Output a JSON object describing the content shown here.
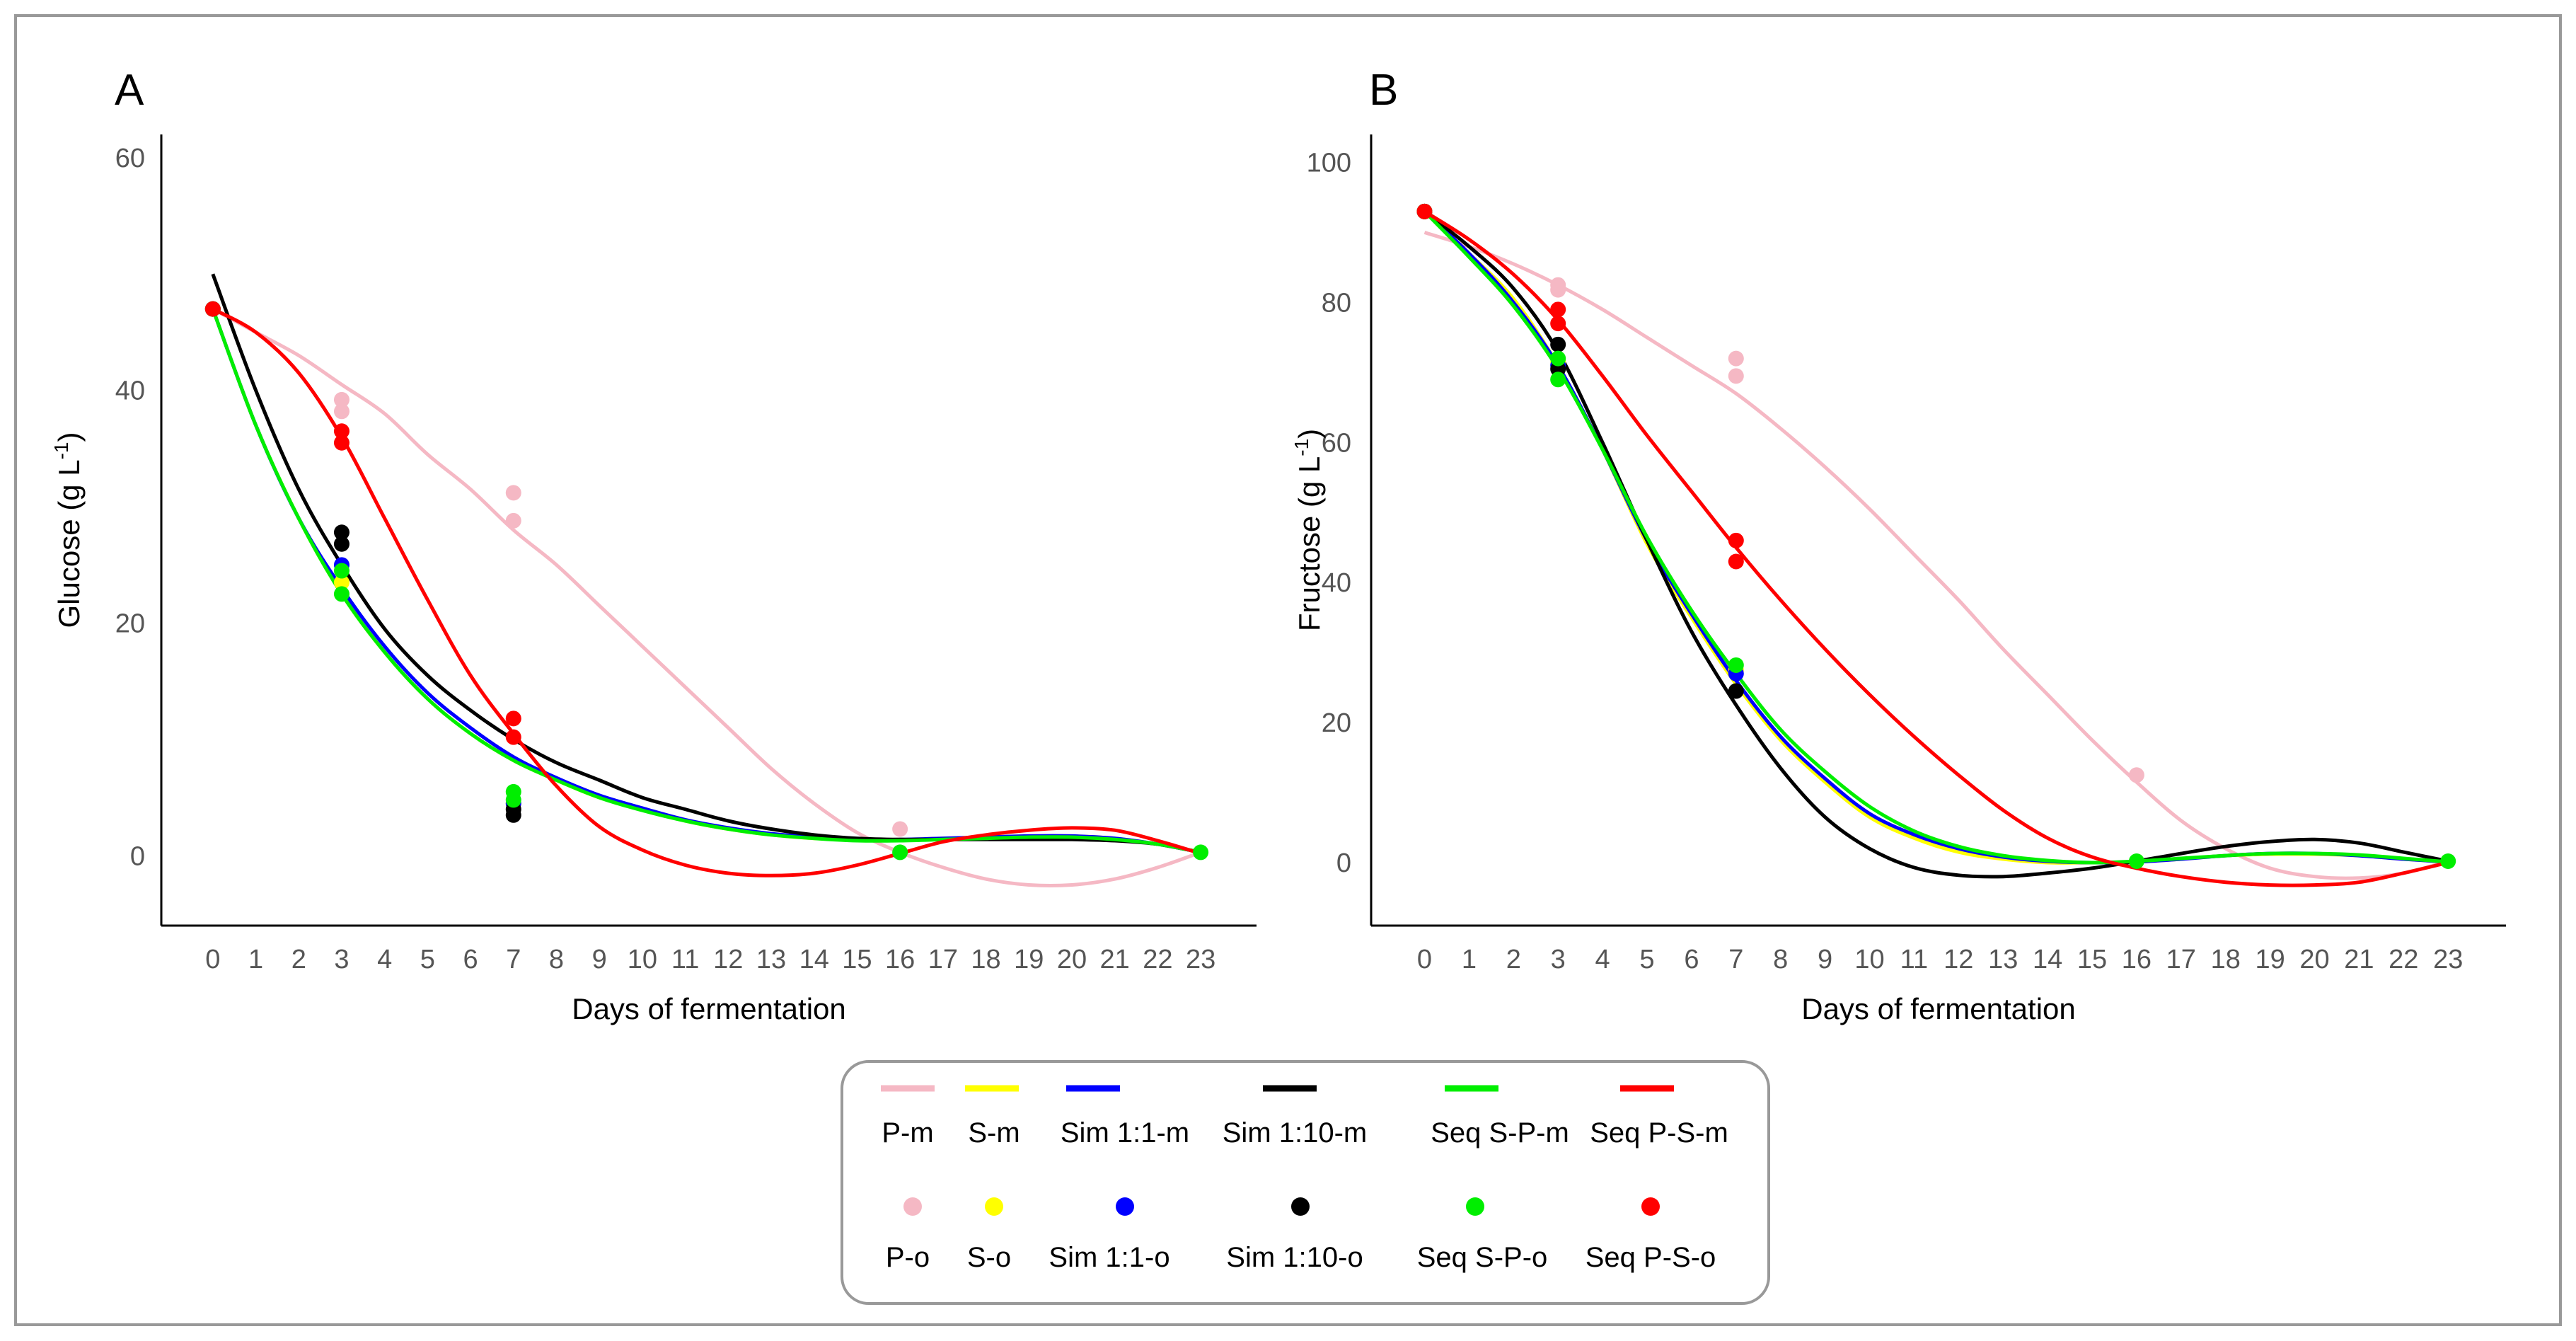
{
  "chart_data": [
    {
      "panel_label": "A",
      "type": "line",
      "title": "",
      "xlabel": "Days of fermentation",
      "ylabel": "Glucose (g L-1)",
      "ylabel_base": "Glucose (g L",
      "ylabel_sup": "-1",
      "ylabel_close": ")",
      "x_ticks": [
        "0",
        "1",
        "2",
        "3",
        "4",
        "5",
        "6",
        "7",
        "8",
        "9",
        "10",
        "11",
        "12",
        "13",
        "14",
        "15",
        "16",
        "17",
        "18",
        "19",
        "20",
        "21",
        "22",
        "23"
      ],
      "y_ticks": [
        "0",
        "20",
        "40",
        "60"
      ],
      "xlim": [
        -1.2,
        24.3
      ],
      "ylim": [
        -6,
        62
      ],
      "grid": false,
      "model_series": [
        {
          "name": "P-m",
          "color": "#f5b8c4",
          "x": [
            0,
            1,
            2,
            3,
            4,
            5,
            6,
            7,
            8,
            9,
            10,
            11,
            12,
            13,
            14,
            15,
            16,
            17,
            18,
            19,
            20,
            21,
            22,
            23
          ],
          "y": [
            47,
            45,
            43,
            40.5,
            38,
            34.5,
            31.5,
            28,
            25,
            21.5,
            18,
            14.5,
            11,
            7.5,
            4.5,
            2,
            0.3,
            -1,
            -2,
            -2.5,
            -2.5,
            -2,
            -1,
            0.3
          ]
        },
        {
          "name": "S-m",
          "color": "#ffff00",
          "x": [
            0,
            1,
            2,
            3,
            4,
            5,
            6,
            7,
            8,
            9,
            10,
            11,
            12,
            13,
            14,
            15,
            16,
            17,
            18,
            19,
            20,
            21,
            22,
            23
          ],
          "y": [
            47,
            37,
            29,
            22.5,
            17.5,
            13.5,
            10.5,
            8.2,
            6.5,
            5,
            4,
            3,
            2.3,
            1.8,
            1.5,
            1.4,
            1.4,
            1.5,
            1.6,
            1.7,
            1.7,
            1.5,
            1,
            0.3
          ]
        },
        {
          "name": "Sim 1:1-m",
          "color": "#0000ff",
          "x": [
            0,
            1,
            2,
            3,
            4,
            5,
            6,
            7,
            8,
            9,
            10,
            11,
            12,
            13,
            14,
            15,
            16,
            17,
            18,
            19,
            20,
            21,
            22,
            23
          ],
          "y": [
            47,
            37,
            29,
            23,
            18,
            14,
            11,
            8.5,
            6.7,
            5.2,
            4.1,
            3.1,
            2.4,
            1.9,
            1.6,
            1.4,
            1.4,
            1.5,
            1.6,
            1.7,
            1.7,
            1.5,
            1,
            0.3
          ]
        },
        {
          "name": "Sim 1:10-m",
          "color": "#000000",
          "x": [
            0,
            1,
            2,
            3,
            4,
            5,
            6,
            7,
            8,
            9,
            10,
            11,
            12,
            13,
            14,
            15,
            16,
            17,
            18,
            19,
            20,
            21,
            22,
            23
          ],
          "y": [
            50,
            40,
            31.5,
            25,
            19.5,
            15.5,
            12.5,
            10,
            8,
            6.5,
            5,
            4,
            3,
            2.3,
            1.8,
            1.5,
            1.4,
            1.4,
            1.4,
            1.4,
            1.4,
            1.3,
            1,
            0.3
          ]
        },
        {
          "name": "Seq S-P-m",
          "color": "#00ee00",
          "x": [
            0,
            1,
            2,
            3,
            4,
            5,
            6,
            7,
            8,
            9,
            10,
            11,
            12,
            13,
            14,
            15,
            16,
            17,
            18,
            19,
            20,
            21,
            22,
            23
          ],
          "y": [
            47,
            37,
            29,
            22.5,
            17.5,
            13.5,
            10.5,
            8.2,
            6.5,
            5,
            3.9,
            3,
            2.3,
            1.8,
            1.5,
            1.3,
            1.3,
            1.4,
            1.5,
            1.6,
            1.6,
            1.4,
            1,
            0.3
          ]
        },
        {
          "name": "Seq P-S-m",
          "color": "#ff0000",
          "x": [
            0,
            1,
            2,
            3,
            4,
            5,
            6,
            7,
            8,
            9,
            10,
            11,
            12,
            13,
            14,
            15,
            16,
            17,
            18,
            19,
            20,
            21,
            22,
            23
          ],
          "y": [
            47,
            45,
            41.5,
            36,
            29,
            22,
            15.5,
            10.5,
            6,
            2.5,
            0.5,
            -0.8,
            -1.5,
            -1.7,
            -1.5,
            -0.8,
            0.2,
            1.2,
            1.8,
            2.2,
            2.4,
            2.2,
            1.3,
            0.2
          ]
        }
      ],
      "observed_series": [
        {
          "name": "P-o",
          "color": "#f5b8c4",
          "x": [
            0,
            3,
            3,
            7,
            7,
            16
          ],
          "y": [
            47,
            39.2,
            38.2,
            31.2,
            28.8,
            2.3
          ]
        },
        {
          "name": "S-o",
          "color": "#ffff00",
          "x": [
            0,
            3,
            7
          ],
          "y": [
            47,
            23.5,
            4.5
          ]
        },
        {
          "name": "Sim 1:1-o",
          "color": "#0000ff",
          "x": [
            0,
            3,
            7
          ],
          "y": [
            47,
            25,
            4.5
          ]
        },
        {
          "name": "Sim 1:10-o",
          "color": "#000000",
          "x": [
            0,
            3,
            3,
            7,
            7
          ],
          "y": [
            47,
            27.8,
            26.8,
            4,
            3.5
          ]
        },
        {
          "name": "Seq S-P-o",
          "color": "#00ee00",
          "x": [
            0,
            3,
            3,
            7,
            7,
            16,
            23
          ],
          "y": [
            47,
            24.5,
            22.5,
            5.5,
            4.8,
            0.3,
            0.3
          ]
        },
        {
          "name": "Seq P-S-o",
          "color": "#ff0000",
          "x": [
            0,
            3,
            3,
            7,
            7
          ],
          "y": [
            47,
            36.5,
            35.5,
            11.8,
            10.2
          ]
        }
      ]
    },
    {
      "panel_label": "B",
      "type": "line",
      "title": "",
      "xlabel": "Days of fermentation",
      "ylabel": "Fructose (g L-1)",
      "ylabel_base": "Fructose (g L",
      "ylabel_sup": "-1",
      "ylabel_close": ")",
      "x_ticks": [
        "0",
        "1",
        "2",
        "3",
        "4",
        "5",
        "6",
        "7",
        "8",
        "9",
        "10",
        "11",
        "12",
        "13",
        "14",
        "15",
        "16",
        "17",
        "18",
        "19",
        "20",
        "21",
        "22",
        "23"
      ],
      "y_ticks": [
        "0",
        "20",
        "40",
        "60",
        "80",
        "100"
      ],
      "xlim": [
        -1.2,
        24.3
      ],
      "ylim": [
        -9,
        104
      ],
      "grid": false,
      "model_series": [
        {
          "name": "P-m",
          "color": "#f5b8c4",
          "x": [
            0,
            1,
            2,
            3,
            4,
            5,
            6,
            7,
            8,
            9,
            10,
            11,
            12,
            13,
            14,
            15,
            16,
            17,
            18,
            19,
            20,
            21,
            22,
            23
          ],
          "y": [
            90,
            88,
            85.5,
            82.5,
            79,
            75,
            71,
            67,
            62,
            56.5,
            50.5,
            44,
            37.5,
            30.5,
            24,
            17.5,
            11.5,
            6,
            2,
            -0.8,
            -2,
            -2.2,
            -1.5,
            0.2
          ]
        },
        {
          "name": "S-m",
          "color": "#ffff00",
          "x": [
            0,
            1,
            2,
            3,
            4,
            5,
            6,
            7,
            8,
            9,
            10,
            11,
            12,
            13,
            14,
            15,
            16,
            17,
            18,
            19,
            20,
            21,
            22,
            23
          ],
          "y": [
            93,
            87,
            80.5,
            71,
            59,
            45.5,
            35,
            25.5,
            17.5,
            11.5,
            6.5,
            3.5,
            1.5,
            0.5,
            0,
            0,
            0.1,
            0.5,
            1,
            1.2,
            1.2,
            1,
            0.5,
            0.1
          ]
        },
        {
          "name": "Sim 1:1-m",
          "color": "#0000ff",
          "x": [
            0,
            1,
            2,
            3,
            4,
            5,
            6,
            7,
            8,
            9,
            10,
            11,
            12,
            13,
            14,
            15,
            16,
            17,
            18,
            19,
            20,
            21,
            22,
            23
          ],
          "y": [
            93,
            87,
            80,
            71,
            59,
            46,
            35.5,
            26,
            18,
            12,
            7,
            4,
            2,
            0.8,
            0.2,
            0,
            0.1,
            0.5,
            1,
            1.3,
            1.3,
            1,
            0.5,
            0.1
          ]
        },
        {
          "name": "Sim 1:10-m",
          "color": "#000000",
          "x": [
            0,
            1,
            2,
            3,
            4,
            5,
            6,
            7,
            8,
            9,
            10,
            11,
            12,
            13,
            14,
            15,
            16,
            17,
            18,
            19,
            20,
            21,
            22,
            23
          ],
          "y": [
            93,
            88,
            82,
            73,
            60,
            46,
            33,
            22.5,
            13.5,
            6.5,
            2,
            -0.7,
            -1.8,
            -2,
            -1.5,
            -0.8,
            0.2,
            1.3,
            2.3,
            3,
            3.3,
            2.8,
            1.5,
            0.2
          ]
        },
        {
          "name": "Seq S-P-m",
          "color": "#00ee00",
          "x": [
            0,
            1,
            2,
            3,
            4,
            5,
            6,
            7,
            8,
            9,
            10,
            11,
            12,
            13,
            14,
            15,
            16,
            17,
            18,
            19,
            20,
            21,
            22,
            23
          ],
          "y": [
            93,
            86.5,
            79.5,
            70.5,
            59,
            46.5,
            36,
            27,
            19,
            13,
            8,
            4.5,
            2.3,
            1,
            0.3,
            0,
            0.2,
            0.6,
            1,
            1.3,
            1.3,
            1.1,
            0.6,
            0.1
          ]
        },
        {
          "name": "Seq P-S-m",
          "color": "#ff0000",
          "x": [
            0,
            1,
            2,
            3,
            4,
            5,
            6,
            7,
            8,
            9,
            10,
            11,
            12,
            13,
            14,
            15,
            16,
            17,
            18,
            19,
            20,
            21,
            22,
            23
          ],
          "y": [
            93,
            89,
            84,
            77.5,
            69.5,
            61,
            53,
            45,
            37.5,
            30.5,
            24,
            18,
            12.5,
            7.5,
            3.5,
            0.8,
            -0.8,
            -2,
            -2.8,
            -3.2,
            -3.2,
            -2.8,
            -1.5,
            0
          ]
        }
      ],
      "observed_series": [
        {
          "name": "P-o",
          "color": "#f5b8c4",
          "x": [
            0,
            3,
            3,
            7,
            7,
            16
          ],
          "y": [
            93,
            82.5,
            81.8,
            72,
            69.5,
            12.5
          ]
        },
        {
          "name": "S-o",
          "color": "#ffff00",
          "x": [
            0,
            3,
            7
          ],
          "y": [
            93,
            71.5,
            27.5
          ]
        },
        {
          "name": "Sim 1:1-o",
          "color": "#0000ff",
          "x": [
            0,
            3,
            7
          ],
          "y": [
            93,
            71,
            27
          ]
        },
        {
          "name": "Sim 1:10-o",
          "color": "#000000",
          "x": [
            0,
            3,
            3,
            7
          ],
          "y": [
            93,
            74,
            70.5,
            24.5
          ]
        },
        {
          "name": "Seq S-P-o",
          "color": "#00ee00",
          "x": [
            0,
            3,
            3,
            7,
            16,
            23
          ],
          "y": [
            93,
            72,
            69,
            28.2,
            0.2,
            0.2
          ]
        },
        {
          "name": "Seq P-S-o",
          "color": "#ff0000",
          "x": [
            0,
            3,
            3,
            7,
            7
          ],
          "y": [
            93,
            79,
            77,
            46,
            43
          ]
        }
      ]
    }
  ],
  "legend": {
    "lines": [
      {
        "label": "P-m",
        "color": "#f5b8c4"
      },
      {
        "label": "S-m",
        "color": "#ffff00"
      },
      {
        "label": "Sim 1:1-m",
        "color": "#0000ff"
      },
      {
        "label": "Sim 1:10-m",
        "color": "#000000"
      },
      {
        "label": "Seq S-P-m",
        "color": "#00ee00"
      },
      {
        "label": "Seq P-S-m",
        "color": "#ff0000"
      }
    ],
    "points": [
      {
        "label": "P-o",
        "color": "#f5b8c4"
      },
      {
        "label": "S-o",
        "color": "#ffff00"
      },
      {
        "label": "Sim 1:1-o",
        "color": "#0000ff"
      },
      {
        "label": "Sim 1:10-o",
        "color": "#000000"
      },
      {
        "label": "Seq S-P-o",
        "color": "#00ee00"
      },
      {
        "label": "Seq P-S-o",
        "color": "#ff0000"
      }
    ]
  }
}
